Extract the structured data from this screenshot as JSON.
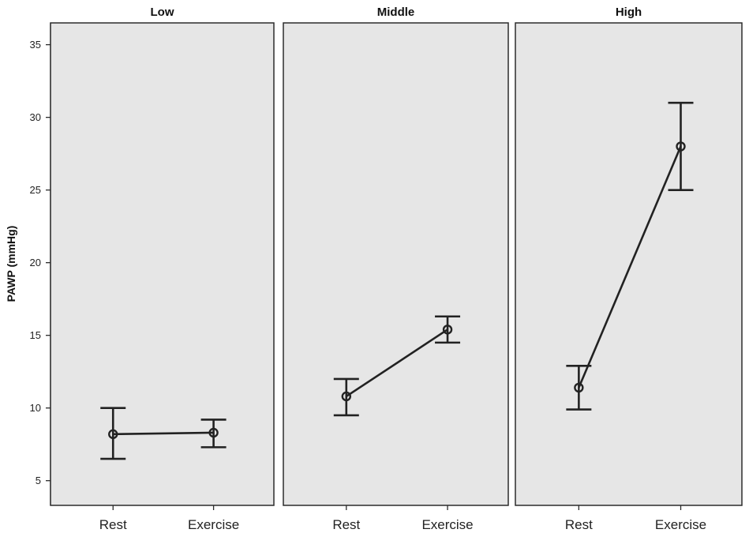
{
  "chart_data": {
    "type": "line",
    "ylabel": "PAWP (mmHg)",
    "xlabel": "",
    "ylim": [
      3.3,
      36.5
    ],
    "yticks": [
      5,
      10,
      15,
      20,
      25,
      30,
      35
    ],
    "grid": false,
    "panels": [
      {
        "title": "Low",
        "categories": [
          "Rest",
          "Exercise"
        ],
        "values": [
          8.2,
          8.3
        ],
        "error_low": [
          6.5,
          7.3
        ],
        "error_high": [
          10.0,
          9.2
        ]
      },
      {
        "title": "Middle",
        "categories": [
          "Rest",
          "Exercise"
        ],
        "values": [
          10.8,
          15.4
        ],
        "error_low": [
          9.5,
          14.5
        ],
        "error_high": [
          12.0,
          16.3
        ]
      },
      {
        "title": "High",
        "categories": [
          "Rest",
          "Exercise"
        ],
        "values": [
          11.4,
          28.0
        ],
        "error_low": [
          9.9,
          25.0
        ],
        "error_high": [
          12.9,
          31.0
        ]
      }
    ]
  }
}
